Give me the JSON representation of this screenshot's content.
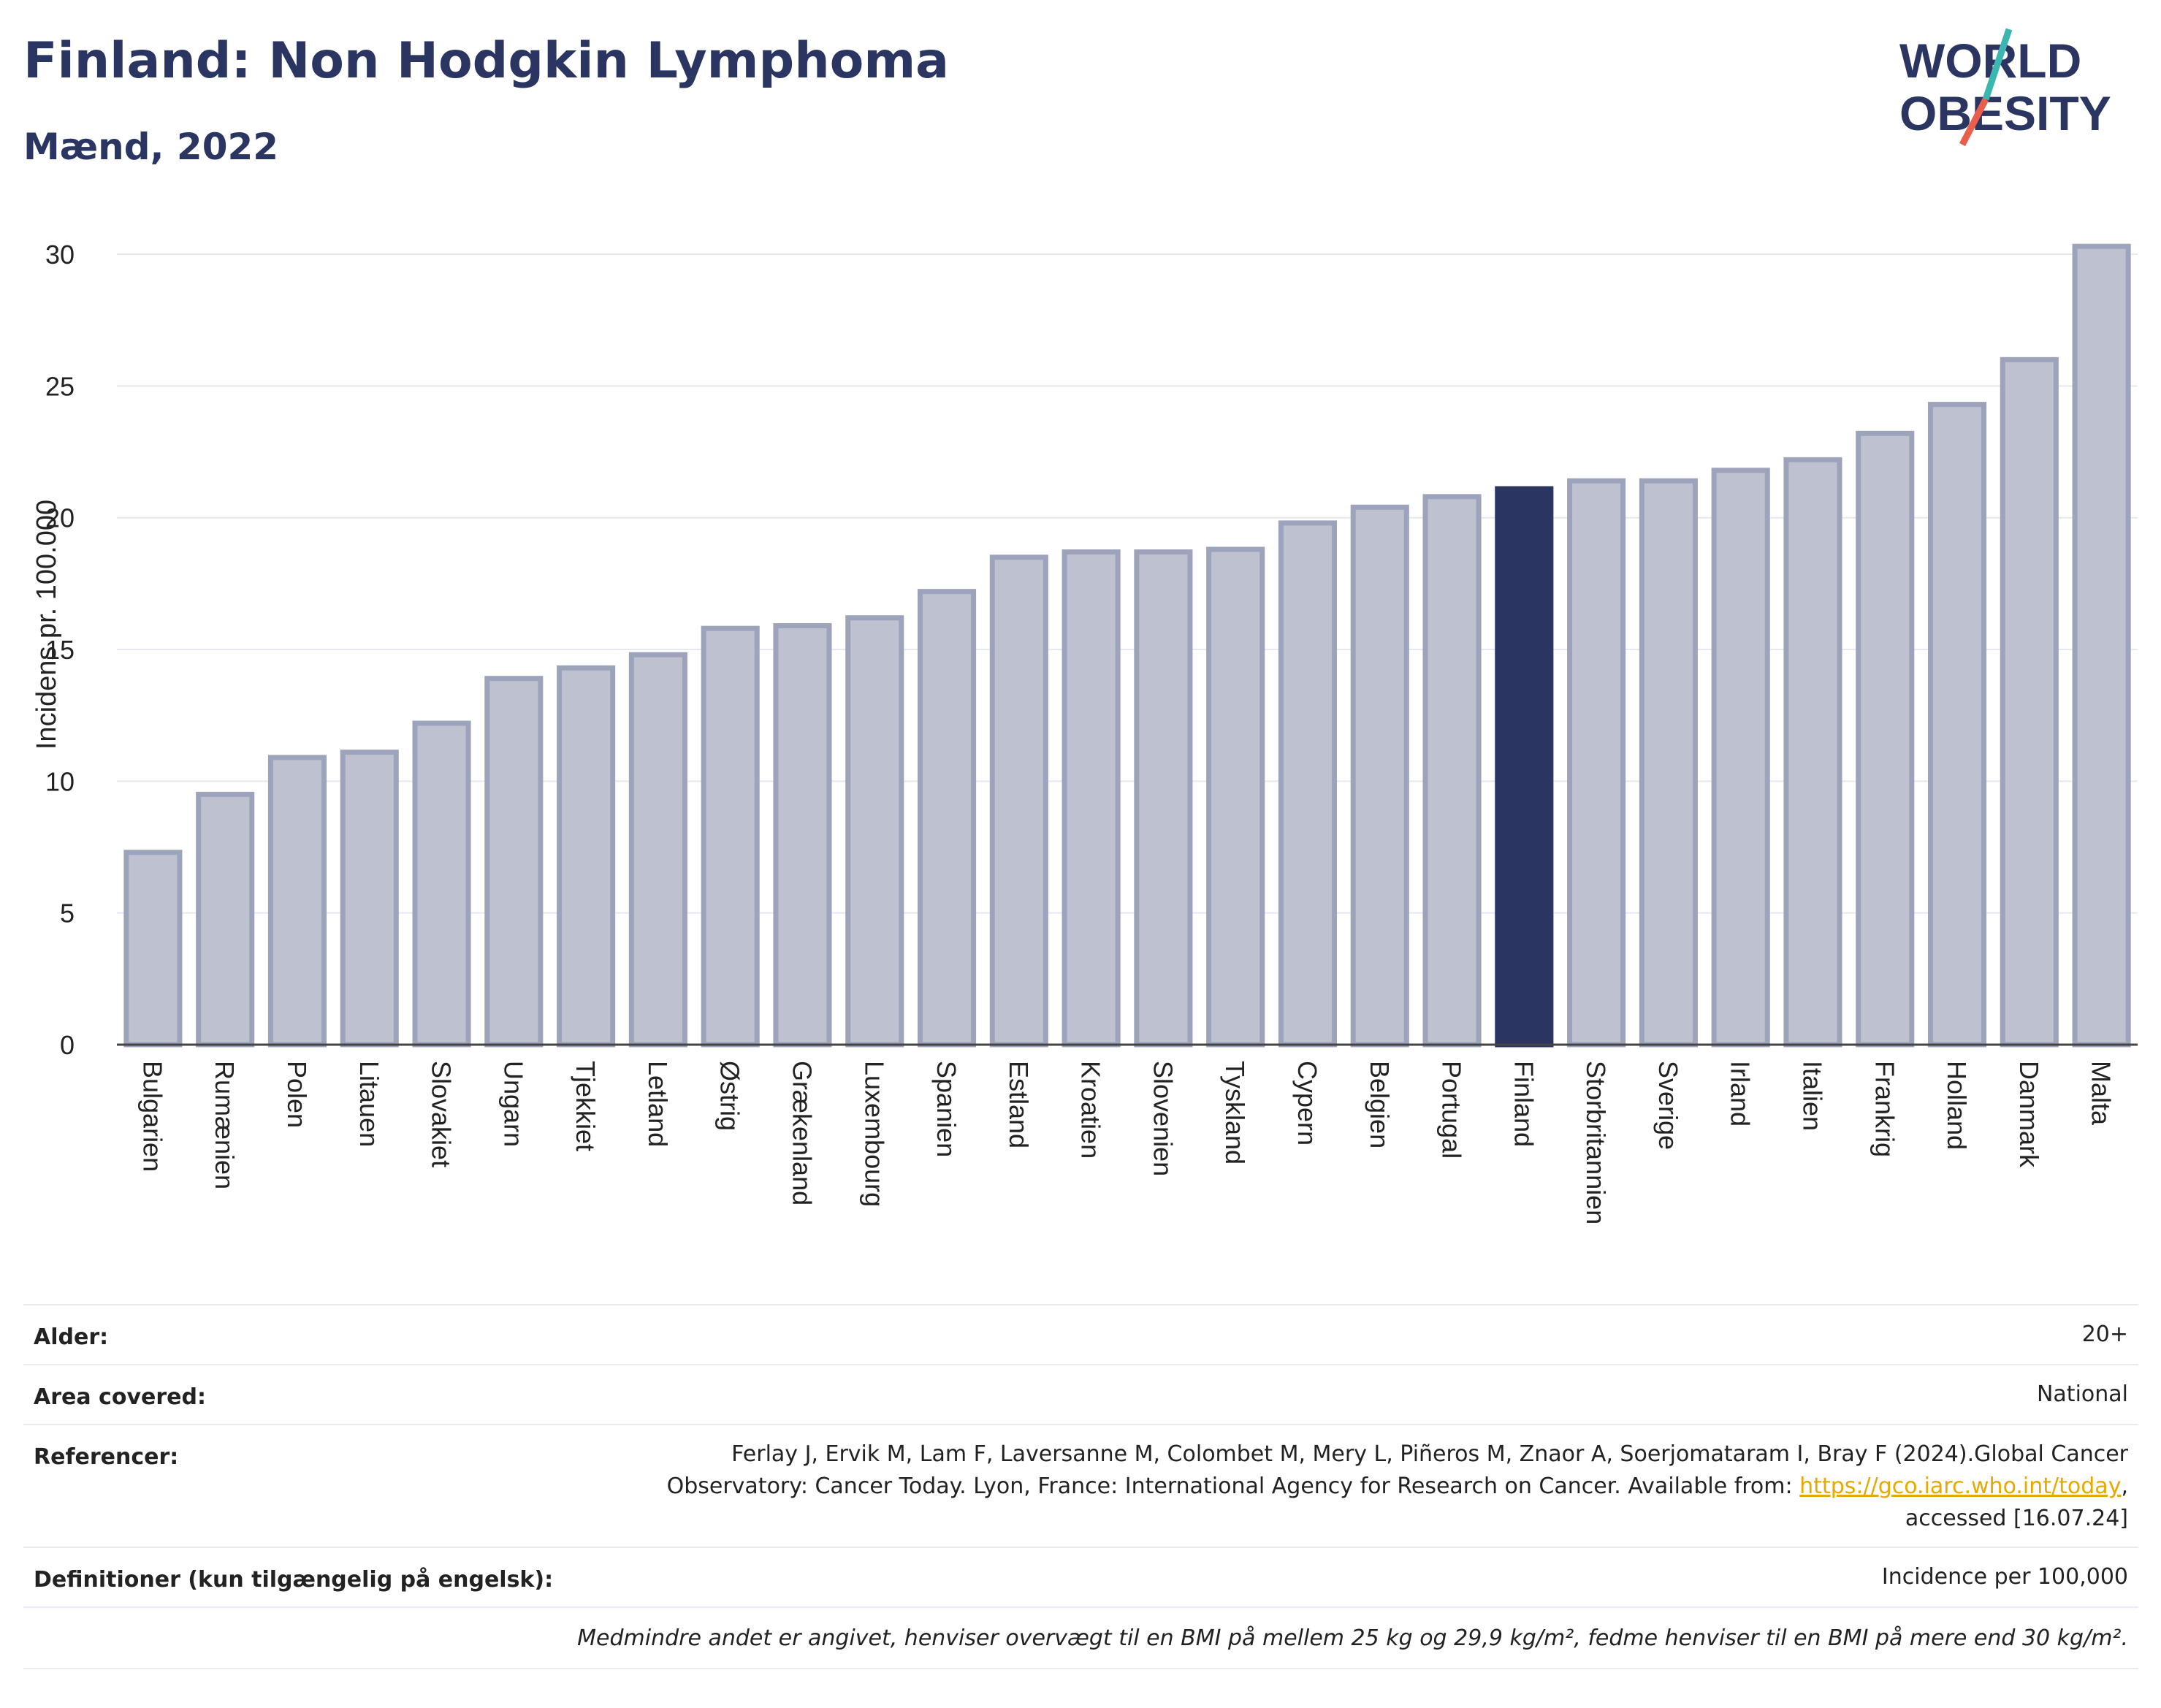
{
  "header": {
    "title": "Finland: Non Hodgkin Lymphoma",
    "subtitle": "Mænd, 2022"
  },
  "logo": {
    "line1": "WORLD",
    "line2": "OBESITY",
    "text_color": "#2a3561",
    "slash_color_top": "#3cb6b0",
    "slash_color_bottom": "#e8604c"
  },
  "colors": {
    "bar": "#bec1d0",
    "bar_stroke": "#9ea3bc",
    "highlight": "#2a3561",
    "grid": "#e6e8ef"
  },
  "chart_data": {
    "type": "bar",
    "ylabel": "Incidens pr. 100.000",
    "ylim": [
      0,
      30.5
    ],
    "yticks": [
      0,
      5,
      10,
      15,
      20,
      25,
      30
    ],
    "grid": true,
    "highlight": "Finland",
    "categories": [
      "Bulgarien",
      "Rumænien",
      "Polen",
      "Litauen",
      "Slovakiet",
      "Ungarn",
      "Tjekkiet",
      "Letland",
      "Østrig",
      "Grækenland",
      "Luxembourg",
      "Spanien",
      "Estland",
      "Kroatien",
      "Slovenien",
      "Tyskland",
      "Cypern",
      "Belgien",
      "Portugal",
      "Finland",
      "Storbritannien",
      "Sverige",
      "Irland",
      "Italien",
      "Frankrig",
      "Holland",
      "Danmark",
      "Malta"
    ],
    "values": [
      7.3,
      9.5,
      10.9,
      11.1,
      12.2,
      13.9,
      14.3,
      14.8,
      15.8,
      15.9,
      16.2,
      17.2,
      18.5,
      18.7,
      18.7,
      18.8,
      19.8,
      20.4,
      20.8,
      21.1,
      21.4,
      21.4,
      21.8,
      22.2,
      23.2,
      24.3,
      26.0,
      30.3
    ]
  },
  "meta": {
    "rows": [
      {
        "label": "Alder:",
        "value": "20+"
      },
      {
        "label": "Area covered:",
        "value": "National"
      },
      {
        "label": "Referencer:",
        "value_line1": "Ferlay J, Ervik M, Lam F, Laversanne M, Colombet M, Mery L, Piñeros M, Znaor A, Soerjomataram I, Bray F (2024).Global Cancer",
        "value_line2": "Observatory: Cancer Today. Lyon, France: International Agency for Research on Cancer. Available from: ",
        "link": "https://gco.iarc.who.int/today",
        "value_line2_end": ",",
        "value_line3": "accessed [16.07.24]"
      },
      {
        "label": "Definitioner (kun tilgængelig på engelsk):",
        "value": "Incidence per 100,000"
      }
    ],
    "footnote": "Medmindre andet er angivet, henviser overvægt til en BMI på mellem 25 kg og 29,9 kg/m², fedme henviser til en BMI på mere end 30 kg/m²."
  }
}
